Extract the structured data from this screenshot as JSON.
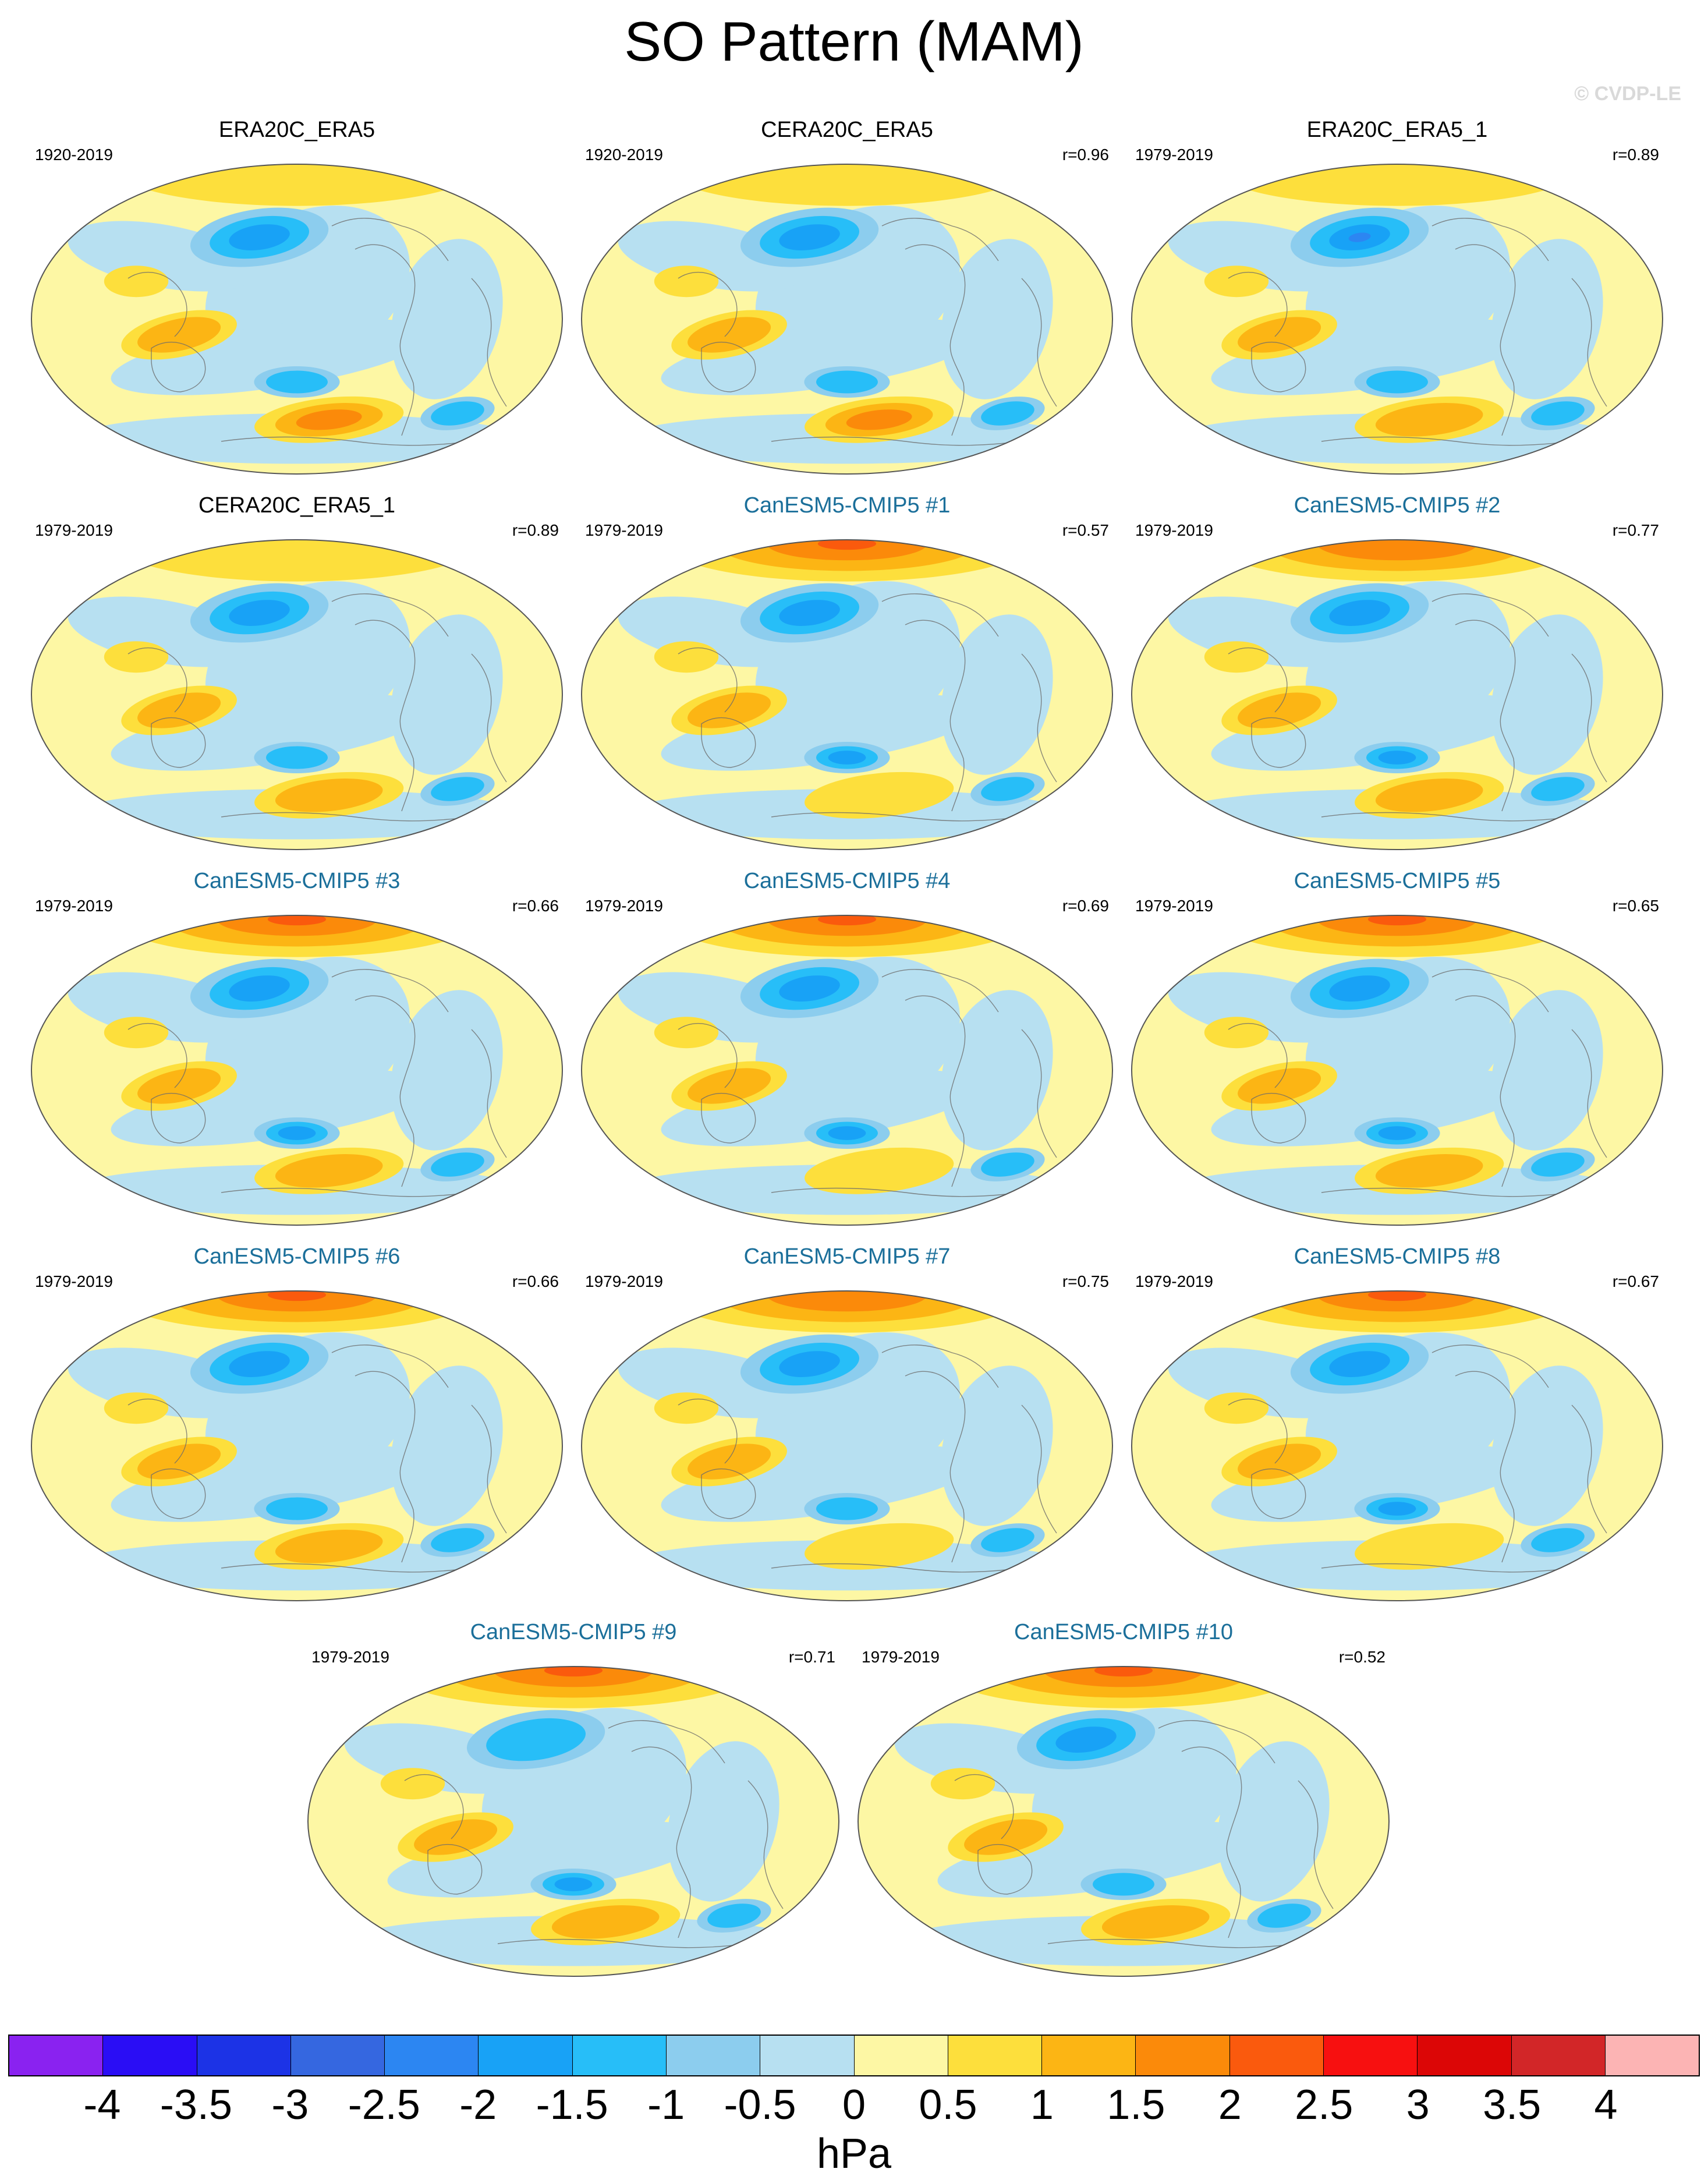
{
  "title": "SO Pattern (MAM)",
  "credit": "© CVDP-LE",
  "panels": [
    {
      "id": "p1",
      "title": "ERA20C_ERA5",
      "period": "1920-2019",
      "corr": "",
      "kind": "obs",
      "pattern": [
        0.3,
        0.6,
        0.0,
        0.8
      ]
    },
    {
      "id": "p2",
      "title": "CERA20C_ERA5",
      "period": "1920-2019",
      "corr": "r=0.96",
      "kind": "obs",
      "pattern": [
        0.3,
        0.6,
        0.0,
        0.8
      ]
    },
    {
      "id": "p3",
      "title": "ERA20C_ERA5_1",
      "period": "1979-2019",
      "corr": "r=0.89",
      "kind": "obs",
      "pattern": [
        0.4,
        0.8,
        0.3,
        0.5
      ]
    },
    {
      "id": "p4",
      "title": "CERA20C_ERA5_1",
      "period": "1979-2019",
      "corr": "r=0.89",
      "kind": "obs",
      "pattern": [
        0.3,
        0.6,
        0.3,
        0.5
      ]
    },
    {
      "id": "p5",
      "title": "CanESM5-CMIP5 #1",
      "period": "1979-2019",
      "corr": "r=0.57",
      "kind": "model",
      "pattern": [
        1.4,
        0.4,
        0.6,
        0.2
      ]
    },
    {
      "id": "p6",
      "title": "CanESM5-CMIP5 #2",
      "period": "1979-2019",
      "corr": "r=0.77",
      "kind": "model",
      "pattern": [
        1.1,
        0.4,
        0.5,
        0.5
      ]
    },
    {
      "id": "p7",
      "title": "CanESM5-CMIP5 #3",
      "period": "1979-2019",
      "corr": "r=0.66",
      "kind": "model",
      "pattern": [
        1.9,
        0.4,
        0.5,
        0.4
      ]
    },
    {
      "id": "p8",
      "title": "CanESM5-CMIP5 #4",
      "period": "1979-2019",
      "corr": "r=0.69",
      "kind": "model",
      "pattern": [
        1.2,
        0.4,
        0.5,
        0.3
      ]
    },
    {
      "id": "p9",
      "title": "CanESM5-CMIP5 #5",
      "period": "1979-2019",
      "corr": "r=0.65",
      "kind": "model",
      "pattern": [
        1.7,
        0.6,
        0.5,
        0.4
      ]
    },
    {
      "id": "p10",
      "title": "CanESM5-CMIP5 #6",
      "period": "1979-2019",
      "corr": "r=0.66",
      "kind": "model",
      "pattern": [
        1.3,
        0.5,
        0.4,
        0.4
      ]
    },
    {
      "id": "p11",
      "title": "CanESM5-CMIP5 #7",
      "period": "1979-2019",
      "corr": "r=0.75",
      "kind": "model",
      "pattern": [
        1.1,
        0.4,
        0.4,
        0.3
      ]
    },
    {
      "id": "p12",
      "title": "CanESM5-CMIP5 #8",
      "period": "1979-2019",
      "corr": "r=0.67",
      "kind": "model",
      "pattern": [
        1.6,
        0.5,
        0.5,
        0.2
      ]
    },
    {
      "id": "p13",
      "title": "CanESM5-CMIP5 #9",
      "period": "1979-2019",
      "corr": "r=0.71",
      "kind": "model",
      "pattern": [
        1.2,
        0.3,
        0.5,
        0.5
      ]
    },
    {
      "id": "p14",
      "title": "CanESM5-CMIP5 #10",
      "period": "1979-2019",
      "corr": "r=0.52",
      "kind": "model",
      "pattern": [
        1.8,
        0.5,
        0.4,
        0.6
      ]
    }
  ],
  "colorbar": {
    "units": "hPa",
    "colors": [
      "#8a22f0",
      "#2a0df5",
      "#1c33e6",
      "#3567e0",
      "#2c86f2",
      "#18a2f6",
      "#27bef8",
      "#8ccdee",
      "#b7e0f1",
      "#fdf7a4",
      "#fddf3c",
      "#fcb514",
      "#fb8a0a",
      "#fa5a0d",
      "#f71010",
      "#dc0606",
      "#d22628",
      "#fcb4b4"
    ],
    "labels": [
      "-4",
      "-3.5",
      "-3",
      "-2.5",
      "-2",
      "-1.5",
      "-1",
      "-0.5",
      "0",
      "0.5",
      "1",
      "1.5",
      "2",
      "2.5",
      "3",
      "3.5",
      "4"
    ]
  }
}
